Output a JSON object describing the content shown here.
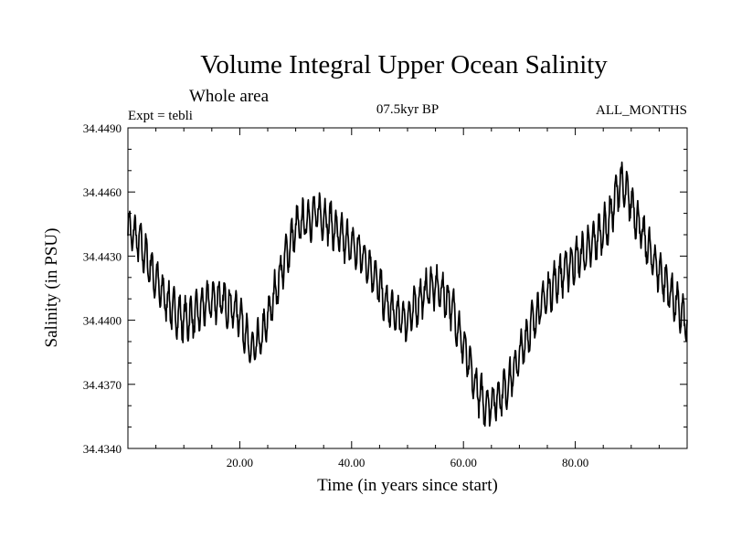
{
  "chart_data": {
    "type": "line",
    "title": "Volume Integral Upper Ocean Salinity",
    "subtitle": "Whole area",
    "left_label": "Expt = tebli",
    "center_label": "07.5kyr BP",
    "right_label": "ALL_MONTHS",
    "xlabel": "Time (in years since start)",
    "ylabel": "Salinity (in PSU)",
    "xlim": [
      0,
      100
    ],
    "ylim": [
      34.434,
      34.449
    ],
    "x_ticks": [
      "20.00",
      "40.00",
      "60.00",
      "80.00"
    ],
    "x_tick_values": [
      20,
      40,
      60,
      80
    ],
    "y_ticks": [
      "34.4340",
      "34.4370",
      "34.4400",
      "34.4430",
      "34.4460",
      "34.4490"
    ],
    "y_tick_values": [
      34.434,
      34.437,
      34.44,
      34.443,
      34.446,
      34.449
    ],
    "grid": false,
    "line_color": "#000000",
    "series": [
      {
        "name": "Salinity",
        "x": [
          0,
          2,
          4,
          6,
          8,
          10,
          12,
          14,
          16,
          18,
          20,
          22,
          24,
          26,
          28,
          30,
          32,
          34,
          36,
          38,
          40,
          42,
          44,
          46,
          48,
          50,
          52,
          54,
          56,
          58,
          60,
          62,
          64,
          66,
          68,
          70,
          72,
          74,
          76,
          78,
          80,
          82,
          84,
          86,
          88,
          90,
          92,
          94,
          96,
          98,
          100
        ],
        "values": [
          34.4443,
          34.4437,
          34.4425,
          34.4413,
          34.4405,
          34.44,
          34.4402,
          34.4408,
          34.441,
          34.4407,
          34.4403,
          34.4385,
          34.4392,
          34.441,
          34.4428,
          34.4443,
          34.4447,
          34.445,
          34.4446,
          34.4439,
          34.4435,
          34.443,
          34.4422,
          34.4408,
          34.4402,
          34.44,
          34.4409,
          34.4416,
          34.4414,
          34.4406,
          34.4388,
          34.437,
          34.436,
          34.4363,
          34.437,
          34.4383,
          34.4397,
          34.4408,
          34.4416,
          34.4423,
          34.4428,
          34.4432,
          34.4439,
          34.4446,
          34.4465,
          34.4455,
          34.444,
          34.4428,
          34.4418,
          34.4408,
          34.4398
        ]
      }
    ]
  }
}
